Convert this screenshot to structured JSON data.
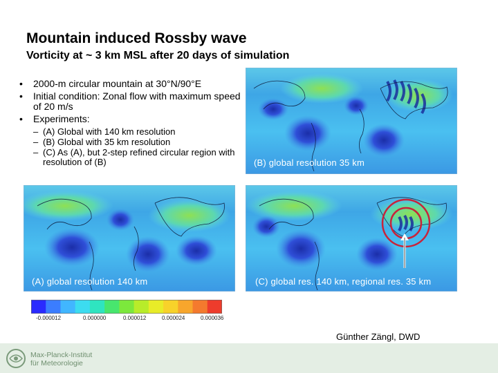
{
  "slide": {
    "title": "Mountain induced Rossby wave",
    "subtitle": "Vorticity at ~ 3 km MSL after 20 days of simulation",
    "bullets": [
      "2000-m circular mountain at 30°N/90°E",
      "Initial condition: Zonal flow with maximum speed of 20 m/s",
      "Experiments:"
    ],
    "experiments": [
      "(A) Global with 140 km resolution",
      "(B) Global with 35 km resolution",
      "(C) As (A), but 2-step refined circular region with resolution of (B)"
    ],
    "panels": {
      "b_label": "(B) global resolution 35 km",
      "a_label": "(A) global resolution 140 km",
      "c_label": "(C) global res. 140 km, regional res. 35 km"
    },
    "colorbar": {
      "tick_labels": [
        "-0.000012",
        "0.000000",
        "0.000012",
        "0.000024",
        "0.000036"
      ],
      "colors": [
        "#2a2aff",
        "#3b7dff",
        "#41b6ff",
        "#3cdcf0",
        "#2fe4c0",
        "#48e66e",
        "#7ce83c",
        "#b8ec2a",
        "#e8ec28",
        "#f8d22a",
        "#f8a62c",
        "#f47a2e",
        "#ee3c2c"
      ]
    },
    "author": "Günther Zängl, DWD",
    "institute": {
      "line1": "Max-Planck-Institut",
      "line2": "für Meteorologie"
    },
    "colors": {
      "ring": "#c8243a",
      "map_base": "#3fa6e6",
      "footer": "#e4eee4"
    }
  }
}
